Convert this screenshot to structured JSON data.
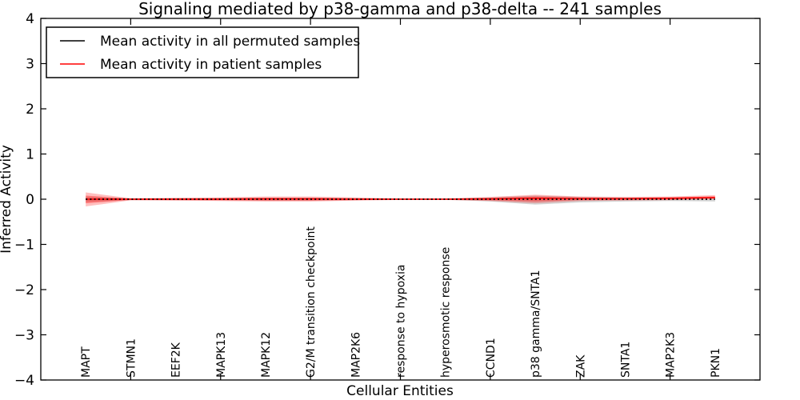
{
  "figure": {
    "background": "#ffffff",
    "frame_color": "#000000"
  },
  "chart_data": {
    "type": "line",
    "title": "Signaling mediated by p38-gamma and p38-delta -- 241 samples",
    "xlabel": "Cellular Entities",
    "ylabel": "Inferred Activity",
    "ylim": [
      -4,
      4
    ],
    "yticks": [
      -4,
      -3,
      -2,
      -1,
      0,
      1,
      2,
      3,
      4
    ],
    "ytick_labels": [
      "−4",
      "−3",
      "−2",
      "−1",
      "0",
      "1",
      "2",
      "3",
      "4"
    ],
    "grid": false,
    "legend_position": "upper left",
    "categories": [
      "MAPT",
      "STMN1",
      "EEF2K",
      "MAPK13",
      "MAPK12",
      "G2/M transition checkpoint",
      "MAP2K6",
      "response to hypoxia",
      "hyperosmotic response",
      "CCND1",
      "p38 gamma/SNTA1",
      "ZAK",
      "SNTA1",
      "MAP2K3",
      "PKN1"
    ],
    "series": [
      {
        "name": "Mean activity in all permuted samples",
        "color": "#000000",
        "line_style": "dotted",
        "values": [
          0,
          0,
          0,
          0,
          0,
          0,
          0,
          0,
          0,
          0,
          0,
          0,
          0,
          0,
          0
        ],
        "band": {
          "color": "#a0a0a0",
          "upper": [
            0.05,
            0.02,
            0.02,
            0.02,
            0.03,
            0.03,
            0.02,
            0.01,
            0.01,
            0.04,
            0.08,
            0.05,
            0.04,
            0.04,
            0.05
          ],
          "lower": [
            -0.06,
            -0.02,
            -0.02,
            -0.02,
            -0.03,
            -0.03,
            -0.02,
            -0.01,
            -0.01,
            -0.05,
            -0.12,
            -0.07,
            -0.05,
            -0.04,
            -0.05
          ]
        }
      },
      {
        "name": "Mean activity in patient samples",
        "color": "#ff0000",
        "line_style": "solid",
        "values": [
          0,
          0,
          0,
          0,
          0.005,
          0.005,
          0,
          0,
          0,
          0.005,
          0.02,
          0.01,
          0.01,
          0.02,
          0.04
        ],
        "band": {
          "color": "#ff0000",
          "upper": [
            0.15,
            0.02,
            0.03,
            0.04,
            0.06,
            0.06,
            0.04,
            0.015,
            0.015,
            0.05,
            0.1,
            0.06,
            0.05,
            0.06,
            0.09
          ],
          "lower": [
            -0.16,
            -0.025,
            -0.03,
            -0.04,
            -0.05,
            -0.05,
            -0.03,
            -0.015,
            -0.015,
            -0.04,
            -0.09,
            -0.04,
            -0.03,
            -0.02,
            0.0
          ]
        },
        "band_inner": {
          "color": "#ff0000",
          "upper": [
            0.08,
            0.012,
            0.02,
            0.025,
            0.035,
            0.035,
            0.02,
            0.01,
            0.01,
            0.03,
            0.06,
            0.04,
            0.03,
            0.04,
            0.06
          ],
          "lower": [
            -0.09,
            -0.015,
            -0.02,
            -0.025,
            -0.03,
            -0.03,
            -0.02,
            -0.01,
            -0.01,
            -0.025,
            -0.05,
            -0.02,
            -0.015,
            -0.01,
            0.01
          ]
        }
      }
    ]
  },
  "legend": {
    "items": [
      {
        "label": "Mean activity in all permuted samples",
        "color": "#000000"
      },
      {
        "label": "Mean activity in patient samples",
        "color": "#ff0000"
      }
    ]
  }
}
